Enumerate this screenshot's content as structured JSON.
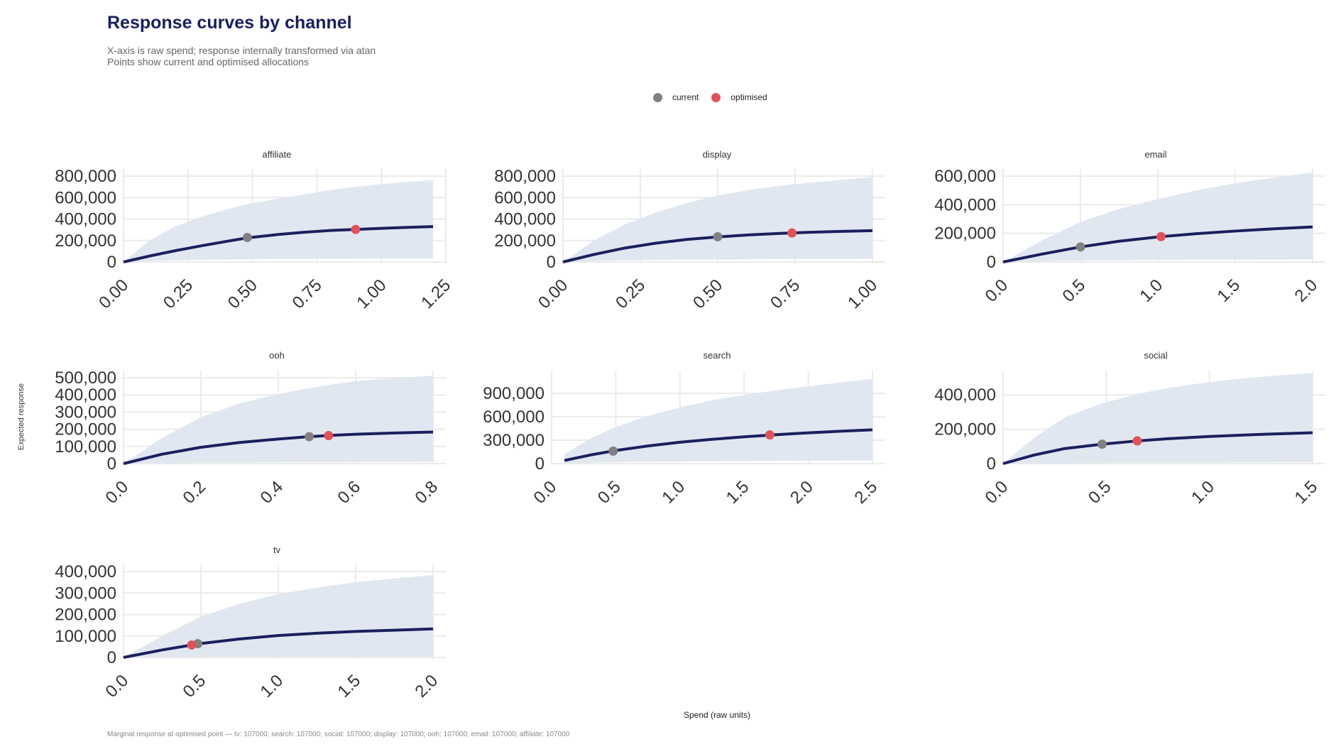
{
  "header": {
    "title": "Response curves by channel",
    "subtitle_line1": "X-axis is raw spend; response internally transformed via atan",
    "subtitle_line2": "Points show current and optimised allocations"
  },
  "legend": {
    "current_label": "current",
    "optimised_label": "optimised"
  },
  "axes": {
    "ylabel": "Expected response",
    "xlabel": "Spend (raw units)"
  },
  "caption": "Marginal response at optimised point — tv: 107000;  search: 107000;  social: 107000;  display: 107000;  ooh: 107000;  email: 107000;  affiliate: 107000",
  "colors": {
    "curve": "#1a1f5e",
    "band": "#e1e7f1",
    "current": "#808080",
    "optimised": "#e0525a",
    "grid": "#ebebeb"
  },
  "chart_data": {
    "type": "line",
    "panels": [
      {
        "title": "affiliate",
        "xlim": [
          0,
          1.2
        ],
        "ylim": [
          0,
          800000
        ],
        "xticks": [
          0,
          0.25,
          0.5,
          0.75,
          1.0,
          1.25
        ],
        "xtick_labels": [
          "0.00",
          "0.25",
          "0.50",
          "0.75",
          "1.00",
          "1.25"
        ],
        "yticks": [
          0,
          200000,
          400000,
          600000,
          800000
        ],
        "ytick_labels": [
          "0",
          "200,000",
          "400,000",
          "600,000",
          "800,000"
        ],
        "curve_x": [
          0,
          0.1,
          0.2,
          0.3,
          0.4,
          0.48,
          0.6,
          0.7,
          0.8,
          0.9,
          1.0,
          1.1,
          1.2
        ],
        "curve_y": [
          0,
          55000,
          105000,
          150000,
          192000,
          225000,
          256000,
          277000,
          293000,
          303000,
          313000,
          322000,
          330000
        ],
        "band_upper": [
          0,
          200000,
          330000,
          420000,
          490000,
          540000,
          590000,
          630000,
          670000,
          700000,
          725000,
          745000,
          765000
        ],
        "band_lower": [
          0,
          8000,
          15000,
          20000,
          24000,
          26000,
          28000,
          29000,
          30000,
          31000,
          32000,
          33000,
          34000
        ],
        "current": {
          "x": 0.48,
          "y": 228000
        },
        "optimised": {
          "x": 0.9,
          "y": 303000
        }
      },
      {
        "title": "display",
        "xlim": [
          0,
          1.0
        ],
        "ylim": [
          0,
          800000
        ],
        "xticks": [
          0,
          0.25,
          0.5,
          0.75,
          1.0
        ],
        "xtick_labels": [
          "0.00",
          "0.25",
          "0.50",
          "0.75",
          "1.00"
        ],
        "yticks": [
          0,
          200000,
          400000,
          600000,
          800000
        ],
        "ytick_labels": [
          "0",
          "200,000",
          "400,000",
          "600,000",
          "800,000"
        ],
        "curve_x": [
          0,
          0.1,
          0.2,
          0.3,
          0.4,
          0.5,
          0.6,
          0.7,
          0.8,
          0.9,
          1.0
        ],
        "curve_y": [
          0,
          70000,
          130000,
          175000,
          210000,
          233000,
          252000,
          266000,
          277000,
          285000,
          292000
        ],
        "band_upper": [
          0,
          200000,
          350000,
          460000,
          550000,
          620000,
          670000,
          710000,
          740000,
          765000,
          790000
        ],
        "band_lower": [
          0,
          8000,
          14000,
          19000,
          22000,
          24000,
          26000,
          27000,
          28000,
          29000,
          30000
        ],
        "current": {
          "x": 0.5,
          "y": 235000
        },
        "optimised": {
          "x": 0.74,
          "y": 270000
        }
      },
      {
        "title": "email",
        "xlim": [
          0,
          2.0
        ],
        "ylim": [
          0,
          600000
        ],
        "xticks": [
          0,
          0.5,
          1.0,
          1.5,
          2.0
        ],
        "xtick_labels": [
          "0.0",
          "0.5",
          "1.0",
          "1.5",
          "2.0"
        ],
        "yticks": [
          0,
          200000,
          400000,
          600000
        ],
        "ytick_labels": [
          "0",
          "200,000",
          "400,000",
          "600,000"
        ],
        "curve_x": [
          0,
          0.25,
          0.5,
          0.75,
          1.0,
          1.25,
          1.5,
          1.75,
          2.0
        ],
        "curve_y": [
          0,
          55000,
          105000,
          145000,
          175000,
          198000,
          216000,
          232000,
          245000
        ],
        "band_upper": [
          0,
          150000,
          280000,
          370000,
          440000,
          500000,
          550000,
          590000,
          625000
        ],
        "band_lower": [
          0,
          5000,
          9000,
          12000,
          14000,
          16000,
          17000,
          18000,
          19000
        ],
        "current": {
          "x": 0.5,
          "y": 105000
        },
        "optimised": {
          "x": 1.02,
          "y": 177000
        }
      },
      {
        "title": "ooh",
        "xlim": [
          0,
          0.8
        ],
        "ylim": [
          0,
          500000
        ],
        "xticks": [
          0,
          0.2,
          0.4,
          0.6,
          0.8
        ],
        "xtick_labels": [
          "0.0",
          "0.2",
          "0.4",
          "0.6",
          "0.8"
        ],
        "yticks": [
          0,
          100000,
          200000,
          300000,
          400000,
          500000
        ],
        "ytick_labels": [
          "0",
          "100,000",
          "200,000",
          "300,000",
          "400,000",
          "500,000"
        ],
        "curve_x": [
          0,
          0.1,
          0.2,
          0.3,
          0.4,
          0.48,
          0.55,
          0.6,
          0.7,
          0.8
        ],
        "curve_y": [
          0,
          55000,
          95000,
          123000,
          143000,
          157000,
          166000,
          171000,
          178000,
          184000
        ],
        "band_upper": [
          0,
          150000,
          270000,
          350000,
          405000,
          440000,
          465000,
          480000,
          498000,
          512000
        ],
        "band_lower": [
          0,
          3000,
          5000,
          6000,
          7000,
          8000,
          8500,
          9000,
          9500,
          10000
        ],
        "current": {
          "x": 0.48,
          "y": 157000
        },
        "optimised": {
          "x": 0.53,
          "y": 163000
        }
      },
      {
        "title": "search",
        "xlim": [
          0,
          2.5
        ],
        "ylim": [
          0,
          1100000
        ],
        "xticks": [
          0,
          0.5,
          1.0,
          1.5,
          2.0,
          2.5
        ],
        "xtick_labels": [
          "0.0",
          "0.5",
          "1.0",
          "1.5",
          "2.0",
          "2.5"
        ],
        "yticks": [
          0,
          300000,
          600000,
          900000
        ],
        "ytick_labels": [
          "0",
          "300,000",
          "600,000",
          "900,000"
        ],
        "curve_x": [
          0.1,
          0.3,
          0.5,
          0.75,
          1.0,
          1.25,
          1.5,
          1.75,
          2.0,
          2.25,
          2.5
        ],
        "curve_y": [
          40000,
          110000,
          168000,
          226000,
          274000,
          311000,
          343000,
          370000,
          394000,
          415000,
          433000
        ],
        "band_upper": [
          120000,
          320000,
          470000,
          610000,
          720000,
          810000,
          880000,
          940000,
          990000,
          1040000,
          1085000
        ],
        "band_lower": [
          5000,
          12000,
          18000,
          23000,
          27000,
          30000,
          33000,
          35000,
          37000,
          39000,
          40000
        ],
        "current": {
          "x": 0.48,
          "y": 160000
        },
        "optimised": {
          "x": 1.7,
          "y": 368000
        }
      },
      {
        "title": "social",
        "xlim": [
          0,
          1.5
        ],
        "ylim": [
          0,
          500000
        ],
        "xticks": [
          0,
          0.5,
          1.0,
          1.5
        ],
        "xtick_labels": [
          "0.0",
          "0.5",
          "1.0",
          "1.5"
        ],
        "yticks": [
          0,
          200000,
          400000
        ],
        "ytick_labels": [
          "0",
          "200,000",
          "400,000"
        ],
        "curve_x": [
          0,
          0.15,
          0.3,
          0.48,
          0.65,
          0.8,
          1.0,
          1.2,
          1.35,
          1.5
        ],
        "curve_y": [
          0,
          50000,
          88000,
          113000,
          132000,
          145000,
          158000,
          168000,
          174000,
          180000
        ],
        "band_upper": [
          0,
          150000,
          270000,
          350000,
          405000,
          440000,
          475000,
          500000,
          515000,
          527000
        ],
        "band_lower": [
          0,
          2000,
          3500,
          4500,
          5000,
          5500,
          6000,
          6500,
          7000,
          7500
        ],
        "current": {
          "x": 0.48,
          "y": 113000
        },
        "optimised": {
          "x": 0.65,
          "y": 132000
        }
      },
      {
        "title": "tv",
        "xlim": [
          0,
          2.0
        ],
        "ylim": [
          0,
          400000
        ],
        "xticks": [
          0,
          0.5,
          1.0,
          1.5,
          2.0
        ],
        "xtick_labels": [
          "0.0",
          "0.5",
          "1.0",
          "1.5",
          "2.0"
        ],
        "yticks": [
          0,
          100000,
          200000,
          300000,
          400000
        ],
        "ytick_labels": [
          "0",
          "100,000",
          "200,000",
          "300,000",
          "400,000"
        ],
        "curve_x": [
          0,
          0.25,
          0.5,
          0.75,
          1.0,
          1.25,
          1.5,
          1.75,
          2.0
        ],
        "curve_y": [
          0,
          35000,
          65000,
          86000,
          102000,
          113000,
          121000,
          127000,
          133000
        ],
        "band_upper": [
          0,
          100000,
          190000,
          250000,
          295000,
          325000,
          350000,
          368000,
          383000
        ],
        "band_lower": [
          0,
          1000,
          1500,
          2000,
          2500,
          2800,
          3000,
          3200,
          3500
        ],
        "current": {
          "x": 0.48,
          "y": 64000
        },
        "optimised": {
          "x": 0.44,
          "y": 58000
        }
      }
    ]
  }
}
